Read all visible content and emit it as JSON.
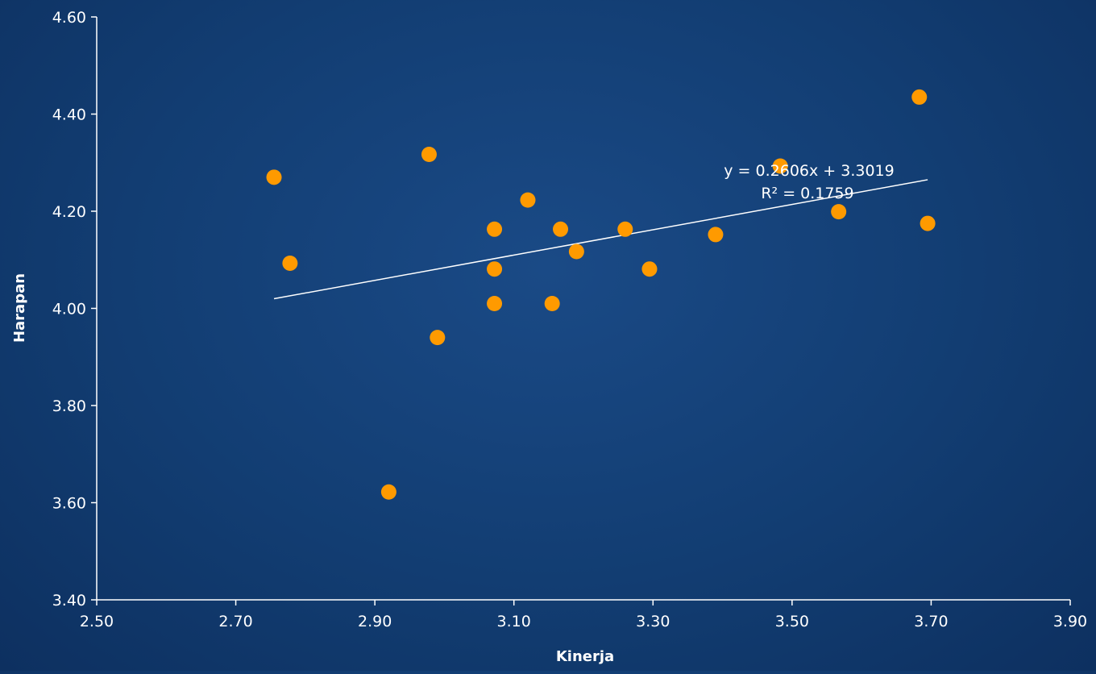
{
  "chart_data": {
    "type": "scatter",
    "title": "",
    "xlabel": "Kinerja",
    "ylabel": "Harapan",
    "xlim": [
      2.5,
      3.9
    ],
    "ylim": [
      3.4,
      4.6
    ],
    "x_ticks": [
      "2.50",
      "2.70",
      "2.90",
      "3.10",
      "3.30",
      "3.50",
      "3.70",
      "3.90"
    ],
    "y_ticks": [
      "3.40",
      "3.60",
      "3.80",
      "4.00",
      "4.20",
      "4.40",
      "4.60"
    ],
    "grid": false,
    "legend": "none",
    "series": [
      {
        "points": [
          [
            2.755,
            4.27
          ],
          [
            2.778,
            4.093
          ],
          [
            2.92,
            3.622
          ],
          [
            2.978,
            4.317
          ],
          [
            2.99,
            3.94
          ],
          [
            3.072,
            4.163
          ],
          [
            3.072,
            4.081
          ],
          [
            3.072,
            4.01
          ],
          [
            3.12,
            4.223
          ],
          [
            3.155,
            4.01
          ],
          [
            3.167,
            4.163
          ],
          [
            3.19,
            4.117
          ],
          [
            3.26,
            4.163
          ],
          [
            3.295,
            4.081
          ],
          [
            3.39,
            4.152
          ],
          [
            3.483,
            4.293
          ],
          [
            3.567,
            4.199
          ],
          [
            3.683,
            4.435
          ],
          [
            3.695,
            4.175
          ]
        ],
        "color": "#ff9a00"
      }
    ],
    "trendline": {
      "slope": 0.2606,
      "intercept": 3.3019,
      "x_range": [
        2.755,
        3.695
      ],
      "color": "#ffffff",
      "equation": "y = 0.2606x + 3.3019",
      "r_squared": "R² = 0.1759"
    }
  }
}
